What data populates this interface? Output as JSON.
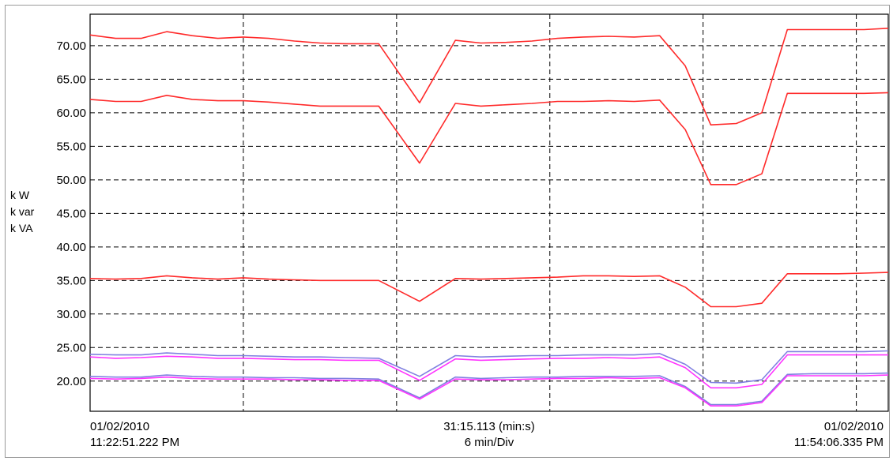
{
  "chart_data": {
    "type": "line",
    "ylabel": [
      "k W",
      "k var",
      "k VA"
    ],
    "ylim": [
      15.5,
      74.7
    ],
    "yticks": [
      "70.00",
      "65.00",
      "60.00",
      "55.00",
      "50.00",
      "45.00",
      "40.00",
      "35.00",
      "30.00",
      "25.00",
      "20.00"
    ],
    "ytick_values": [
      70,
      65,
      60,
      55,
      50,
      45,
      40,
      35,
      30,
      25,
      20
    ],
    "grid": true,
    "x_start": {
      "date": "01/02/2010",
      "time": "11:22:51.222 PM"
    },
    "x_end": {
      "date": "01/02/2010",
      "time": "11:54:06.335 PM"
    },
    "x_center": {
      "duration": "31:15.113 (min:s)",
      "scale": "6 min/Div"
    },
    "x": [
      0.0,
      1.0,
      2.0,
      3.0,
      4.0,
      5.0,
      6.0,
      7.0,
      8.0,
      9.0,
      10.0,
      11.3,
      12.9,
      14.3,
      15.3,
      16.3,
      17.3,
      18.3,
      19.3,
      20.3,
      21.3,
      22.3,
      23.3,
      24.3,
      25.3,
      26.3,
      27.3,
      28.3,
      29.3,
      30.3,
      31.25
    ],
    "series": [
      {
        "color": "#ff2a2a",
        "values": [
          71.6,
          71.1,
          71.1,
          72.1,
          71.5,
          71.1,
          71.3,
          71.1,
          70.7,
          70.4,
          70.3,
          70.3,
          61.5,
          70.8,
          70.4,
          70.5,
          70.7,
          71.1,
          71.3,
          71.4,
          71.3,
          71.5,
          67.0,
          58.2,
          58.4,
          60.0,
          72.4,
          72.4,
          72.4,
          72.4,
          72.6
        ]
      },
      {
        "color": "#ff2a2a",
        "values": [
          62.0,
          61.7,
          61.7,
          62.6,
          62.0,
          61.8,
          61.8,
          61.6,
          61.3,
          61.0,
          61.0,
          61.0,
          52.5,
          61.4,
          61.0,
          61.2,
          61.4,
          61.7,
          61.7,
          61.8,
          61.7,
          61.9,
          57.5,
          49.3,
          49.3,
          50.9,
          62.9,
          62.9,
          62.9,
          62.9,
          63.0
        ]
      },
      {
        "color": "#ff2a2a",
        "values": [
          35.3,
          35.2,
          35.3,
          35.7,
          35.4,
          35.2,
          35.4,
          35.2,
          35.1,
          35.0,
          35.0,
          35.0,
          31.9,
          35.3,
          35.2,
          35.3,
          35.4,
          35.5,
          35.7,
          35.7,
          35.6,
          35.7,
          34.0,
          31.1,
          31.1,
          31.6,
          36.0,
          36.0,
          36.0,
          36.1,
          36.2
        ]
      },
      {
        "color": "#8080e0",
        "values": [
          24.0,
          23.9,
          23.9,
          24.2,
          24.0,
          23.8,
          23.8,
          23.7,
          23.6,
          23.6,
          23.5,
          23.4,
          20.7,
          23.8,
          23.6,
          23.7,
          23.8,
          23.8,
          23.9,
          23.9,
          23.9,
          24.1,
          22.5,
          19.8,
          19.7,
          20.2,
          24.4,
          24.4,
          24.4,
          24.4,
          24.5
        ]
      },
      {
        "color": "#ff33ff",
        "values": [
          23.6,
          23.4,
          23.5,
          23.7,
          23.6,
          23.4,
          23.4,
          23.3,
          23.2,
          23.2,
          23.1,
          23.1,
          20.1,
          23.3,
          23.1,
          23.2,
          23.3,
          23.4,
          23.4,
          23.5,
          23.4,
          23.6,
          22.0,
          19.0,
          19.0,
          19.5,
          23.9,
          23.9,
          23.9,
          23.9,
          23.9
        ]
      },
      {
        "color": "#8080e0",
        "values": [
          20.7,
          20.6,
          20.6,
          20.9,
          20.7,
          20.6,
          20.6,
          20.5,
          20.5,
          20.4,
          20.4,
          20.3,
          17.5,
          20.6,
          20.4,
          20.5,
          20.6,
          20.6,
          20.7,
          20.7,
          20.7,
          20.8,
          19.2,
          16.5,
          16.5,
          17.0,
          21.0,
          21.1,
          21.1,
          21.1,
          21.2
        ]
      },
      {
        "color": "#ff33ff",
        "values": [
          20.4,
          20.3,
          20.4,
          20.6,
          20.4,
          20.3,
          20.3,
          20.3,
          20.2,
          20.2,
          20.1,
          20.1,
          17.3,
          20.3,
          20.2,
          20.2,
          20.3,
          20.4,
          20.4,
          20.5,
          20.4,
          20.5,
          19.0,
          16.3,
          16.3,
          16.8,
          20.8,
          20.8,
          20.8,
          20.8,
          20.9
        ]
      }
    ]
  }
}
